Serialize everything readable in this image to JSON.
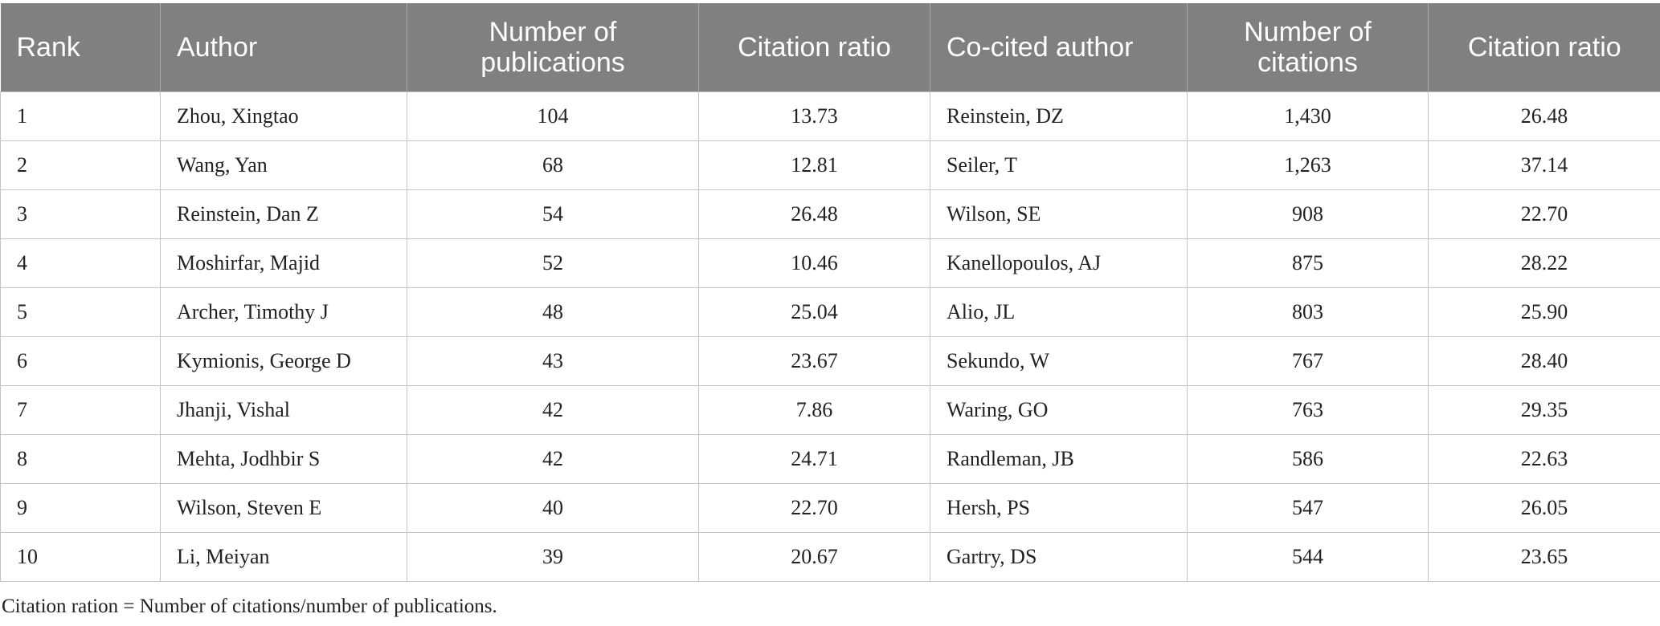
{
  "table": {
    "headers": [
      "Rank",
      "Author",
      "Number of publications",
      "Citation ratio",
      "Co-cited author",
      "Number of citations",
      "Citation ratio"
    ],
    "rows": [
      [
        "1",
        "Zhou, Xingtao",
        "104",
        "13.73",
        "Reinstein, DZ",
        "1,430",
        "26.48"
      ],
      [
        "2",
        "Wang, Yan",
        "68",
        "12.81",
        "Seiler, T",
        "1,263",
        "37.14"
      ],
      [
        "3",
        "Reinstein, Dan Z",
        "54",
        "26.48",
        "Wilson, SE",
        "908",
        "22.70"
      ],
      [
        "4",
        "Moshirfar, Majid",
        "52",
        "10.46",
        "Kanellopoulos, AJ",
        "875",
        "28.22"
      ],
      [
        "5",
        "Archer, Timothy J",
        "48",
        "25.04",
        "Alio, JL",
        "803",
        "25.90"
      ],
      [
        "6",
        "Kymionis, George D",
        "43",
        "23.67",
        "Sekundo, W",
        "767",
        "28.40"
      ],
      [
        "7",
        "Jhanji, Vishal",
        "42",
        "7.86",
        "Waring, GO",
        "763",
        "29.35"
      ],
      [
        "8",
        "Mehta, Jodhbir S",
        "42",
        "24.71",
        "Randleman, JB",
        "586",
        "22.63"
      ],
      [
        "9",
        "Wilson, Steven E",
        "40",
        "22.70",
        "Hersh, PS",
        "547",
        "26.05"
      ],
      [
        "10",
        "Li, Meiyan",
        "39",
        "20.67",
        "Gartry, DS",
        "544",
        "23.65"
      ]
    ]
  },
  "footnote": "Citation ration = Number of citations/number of publications.",
  "colors": {
    "header_bg": "#808080",
    "header_text": "#ffffff",
    "grid": "#c4c4c4",
    "body_text": "#222222"
  }
}
